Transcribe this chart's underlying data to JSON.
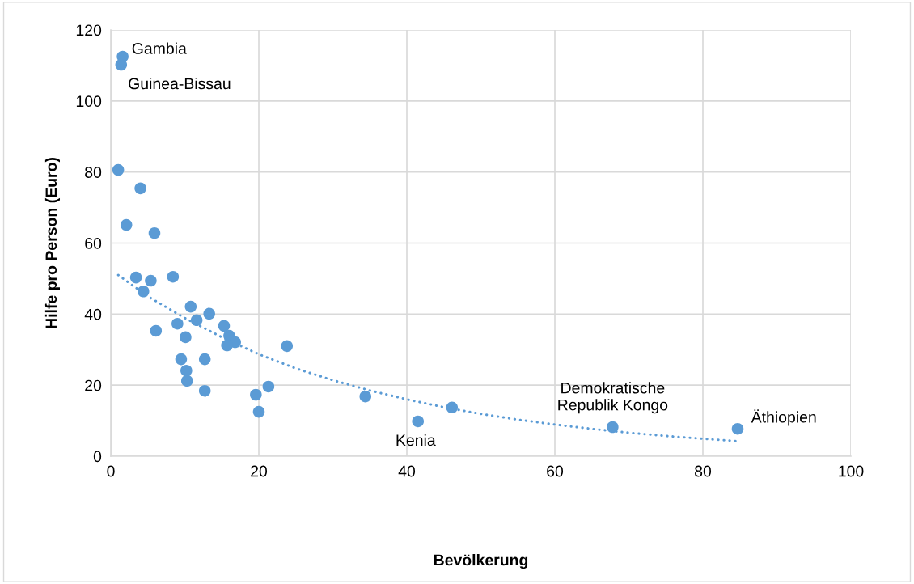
{
  "chart_data": {
    "type": "scatter",
    "xlabel": "Bevölkerung",
    "ylabel": "Hilfe pro Person (Euro)",
    "xlim": [
      0,
      100
    ],
    "xticks": [
      0,
      20,
      40,
      60,
      80,
      100
    ],
    "ylim": [
      0,
      120
    ],
    "yticks": [
      0,
      20,
      40,
      60,
      80,
      100,
      120
    ],
    "grid": true,
    "legend": false,
    "marker": "circle",
    "series": [
      {
        "color": "#5b9bd5",
        "x": [
          1.6,
          1.4,
          1.0,
          4.0,
          2.1,
          5.9,
          3.4,
          5.4,
          4.4,
          8.4,
          10.8,
          13.3,
          11.6,
          9.0,
          6.1,
          15.3,
          16.0,
          16.8,
          15.7,
          10.1,
          23.8,
          9.5,
          12.7,
          10.2,
          10.3,
          12.7,
          19.6,
          21.3,
          20.0,
          34.4,
          41.5,
          46.1,
          67.8,
          84.7
        ],
        "values": [
          112.5,
          110.2,
          80.6,
          75.4,
          65.1,
          62.8,
          50.3,
          49.4,
          46.4,
          50.5,
          42.1,
          40.1,
          38.3,
          37.3,
          35.3,
          36.7,
          33.9,
          32.1,
          31.2,
          33.5,
          31.0,
          27.3,
          27.3,
          24.1,
          21.2,
          18.4,
          17.3,
          19.6,
          12.5,
          16.8,
          9.8,
          13.7,
          8.2,
          7.7
        ]
      },
      {
        "type": "line",
        "line_style": "dotted",
        "marker": "none",
        "color": "#5b9bd5",
        "x": [
          1,
          5,
          10,
          15,
          20,
          25,
          30,
          35,
          40,
          45,
          50,
          55,
          60,
          65,
          70,
          75,
          80,
          85
        ],
        "values": [
          51.0,
          45.0,
          38.9,
          33.5,
          28.7,
          24.7,
          21.4,
          18.5,
          16.0,
          13.8,
          11.9,
          10.3,
          8.9,
          7.7,
          6.6,
          5.7,
          4.9,
          4.2
        ]
      }
    ],
    "annotations": [
      {
        "text": "Gambia",
        "x": 1.6,
        "y": 112.5
      },
      {
        "text": "Guinea-Bissau",
        "x": 1.4,
        "y": 110.2
      },
      {
        "text": "Kenia",
        "x": 41.5,
        "y": 9.8
      },
      {
        "text": "Demokratische\nRepublik Kongo",
        "x": 67.8,
        "y": 8.2
      },
      {
        "text": "Äthiopien",
        "x": 84.7,
        "y": 7.7
      }
    ]
  }
}
